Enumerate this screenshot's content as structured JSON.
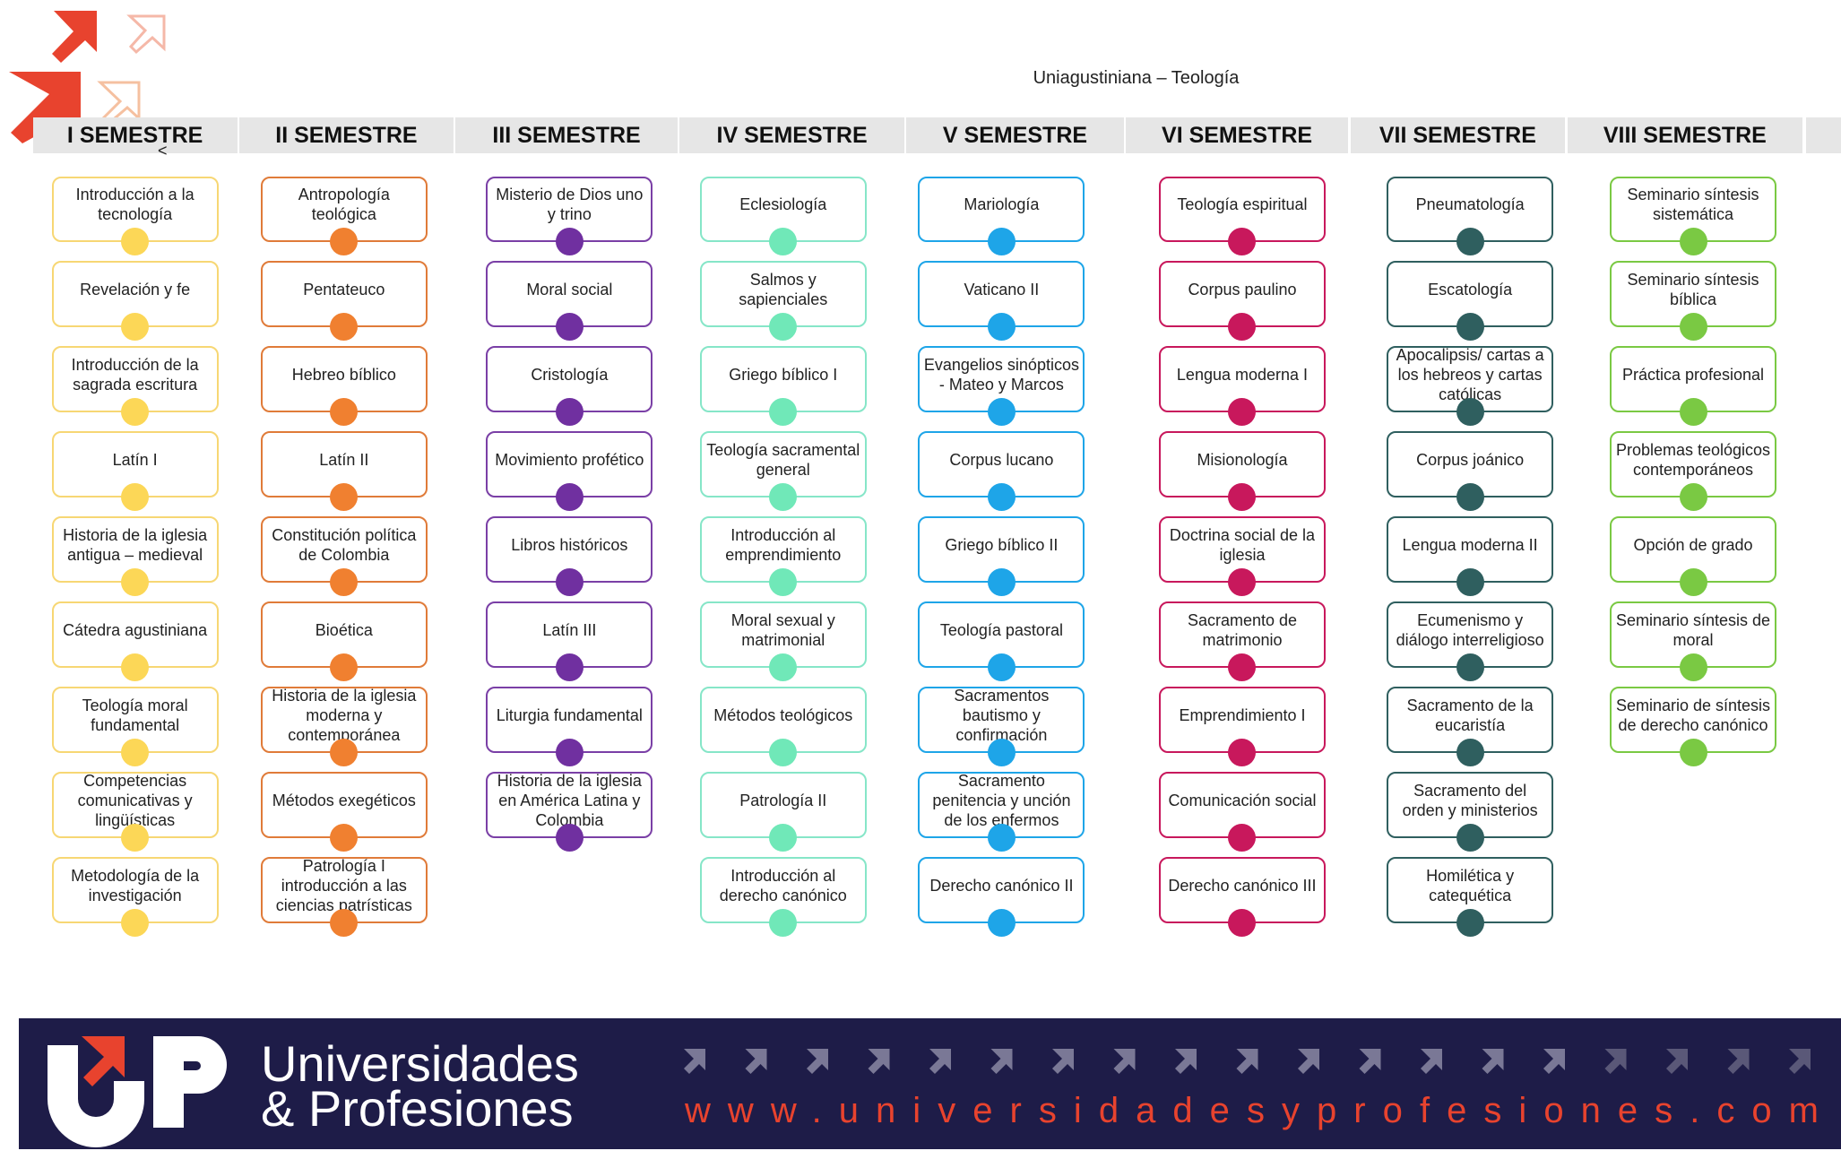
{
  "header": {
    "title": "Uniagustiniana – Teología",
    "stray_mark": "<"
  },
  "semesters": [
    {
      "name": "I SEMESTRE",
      "color": "#f7d774",
      "dot": "#fcd757",
      "courses": [
        "Introducción a la tecnología",
        "Revelación y fe",
        "Introducción de la sagrada escritura",
        "Latín I",
        "Historia de la iglesia antigua – medieval",
        "Cátedra agustiniana",
        "Teología moral fundamental",
        "Competencias comunicativas y lingüísticas",
        "Metodología de la investigación"
      ]
    },
    {
      "name": "II SEMESTRE",
      "color": "#e07b39",
      "dot": "#f08030",
      "courses": [
        "Antropología teológica",
        "Pentateuco",
        "Hebreo bíblico",
        "Latín II",
        "Constitución política de Colombia",
        "Bioética",
        "Historia de la iglesia moderna y contemporánea",
        "Métodos exegéticos",
        "Patrología I introducción a las ciencias patrísticas"
      ]
    },
    {
      "name": "III SEMESTRE",
      "color": "#7a3fa6",
      "dot": "#7030a0",
      "courses": [
        "Misterio de Dios uno y trino",
        "Moral social",
        "Cristología",
        "Movimiento profético",
        "Libros históricos",
        "Latín III",
        "Liturgia fundamental",
        "Historia de la iglesia en América Latina y Colombia"
      ]
    },
    {
      "name": "IV SEMESTRE",
      "color": "#86e6c8",
      "dot": "#70e8b8",
      "courses": [
        "Eclesiología",
        "Salmos y sapienciales",
        "Griego bíblico I",
        "Teología sacramental general",
        "Introducción al emprendimiento",
        "Moral sexual y matrimonial",
        "Métodos teológicos",
        "Patrología II",
        "Introducción al derecho canónico"
      ]
    },
    {
      "name": "V SEMESTRE",
      "color": "#1ea5e8",
      "dot": "#1ea5e8",
      "courses": [
        "Mariología",
        "Vaticano II",
        "Evangelios sinópticos - Mateo y Marcos",
        "Corpus lucano",
        "Griego bíblico II",
        "Teología pastoral",
        "Sacramentos bautismo y confirmación",
        "Sacramento penitencia y unción de los enfermos",
        "Derecho canónico II"
      ]
    },
    {
      "name": "VI SEMESTRE",
      "color": "#c8185c",
      "dot": "#c8185c",
      "courses": [
        "Teología espiritual",
        "Corpus paulino",
        "Lengua moderna I",
        "Misionología",
        "Doctrina social de la iglesia",
        "Sacramento de matrimonio",
        "Emprendimiento I",
        "Comunicación social",
        "Derecho canónico III"
      ]
    },
    {
      "name": "VII SEMESTRE",
      "color": "#2f5f5f",
      "dot": "#2f5f5f",
      "courses": [
        "Pneumatología",
        "Escatología",
        "Apocalipsis/ cartas a los hebreos y cartas católicas",
        "Corpus joánico",
        "Lengua moderna II",
        "Ecumenismo y diálogo interreligioso",
        "Sacramento de la eucaristía",
        "Sacramento del orden y ministerios",
        "Homilética y catequética"
      ]
    },
    {
      "name": "VIII SEMESTRE",
      "color": "#7ac943",
      "dot": "#7ac943",
      "courses": [
        "Seminario síntesis sistemática",
        "Seminario síntesis bíblica",
        "Práctica profesional",
        "Problemas teológicos contemporáneos",
        "Opción de grado",
        "Seminario síntesis de moral",
        "Seminario de síntesis de derecho canónico"
      ]
    }
  ],
  "footer": {
    "brand_line1": "Universidades",
    "brand_line2": "& Profesiones",
    "url": "www.universidadesyprofesiones.com"
  }
}
